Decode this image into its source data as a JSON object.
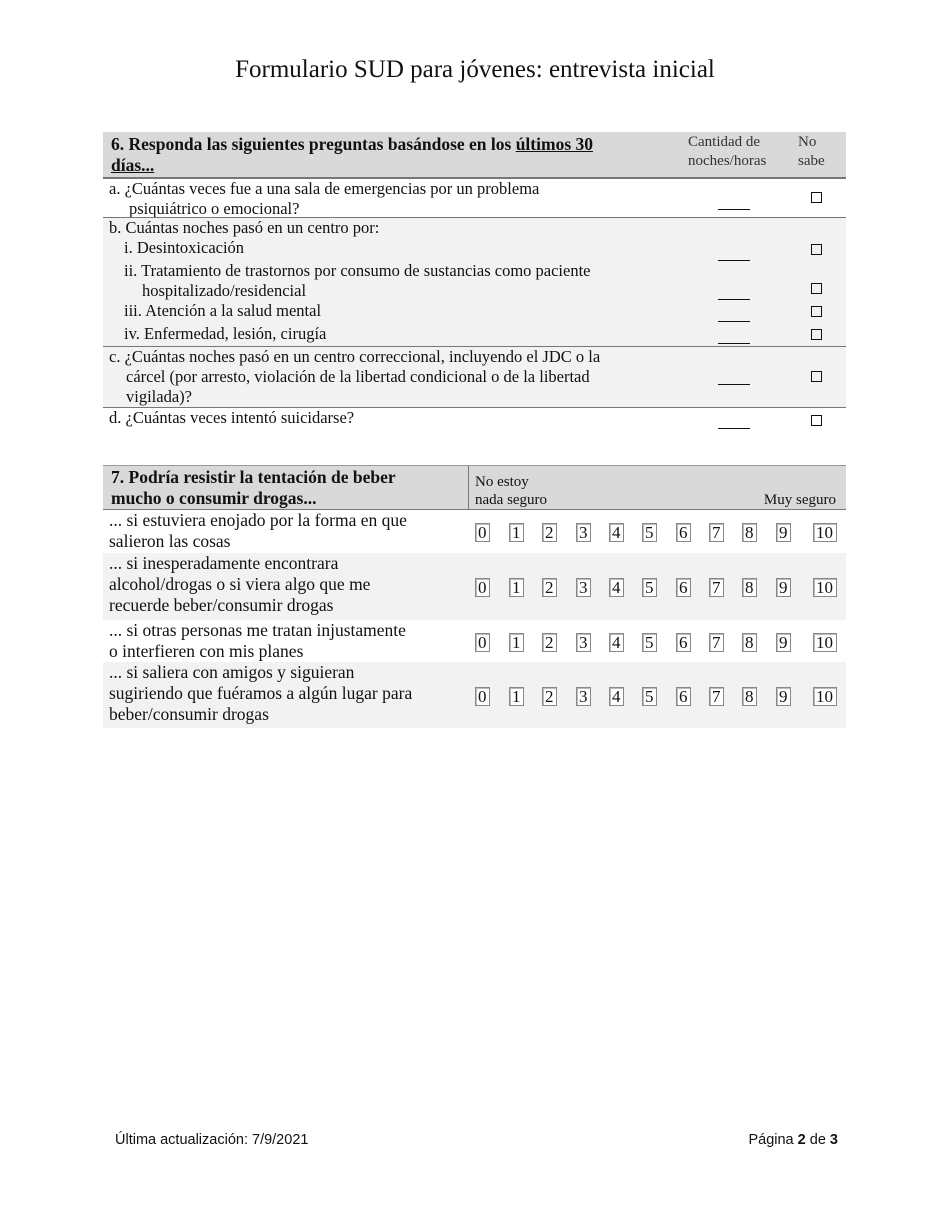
{
  "title": "Formulario SUD para jóvenes: entrevista inicial",
  "q6": {
    "heading_pre": "6. Responda las siguientes preguntas basándose en los ",
    "heading_u1": "últimos 30",
    "heading_u2": "días...",
    "col_amount_1": "Cantidad de",
    "col_amount_2": "noches/horas",
    "col_unknown_1": "No",
    "col_unknown_2": "sabe",
    "a": [
      "a. ¿Cuántas veces fue a una sala de emergencias por un problema",
      "psiquiátrico o emocional?"
    ],
    "b": [
      "b. Cuántas noches pasó en un centro por:",
      "i. Desintoxicación",
      "ii. Tratamiento de trastornos por consumo de sustancias como paciente",
      "hospitalizado/residencial",
      "iii. Atención a la salud mental",
      "iv. Enfermedad, lesión, cirugía"
    ],
    "c": [
      "c. ¿Cuántas noches pasó en un centro correccional, incluyendo el JDC o la",
      "cárcel (por arresto, violación de la libertad condicional o de la libertad",
      "vigilada)?"
    ],
    "d": [
      "d. ¿Cuántas veces intentó suicidarse?"
    ]
  },
  "q7": {
    "heading_1": "7. Podría resistir la tentación de beber",
    "heading_2": "mucho o consumir drogas...",
    "low_1": "No estoy",
    "low_2": "nada seguro",
    "high": "Muy seguro",
    "scale": [
      "0",
      "1",
      "2",
      "3",
      "4",
      "5",
      "6",
      "7",
      "8",
      "9",
      "10"
    ],
    "items": [
      [
        "... si estuviera enojado por la forma en que",
        "salieron las cosas"
      ],
      [
        "... si inesperadamente encontrara",
        "alcohol/drogas o si viera algo que me",
        "recuerde beber/consumir drogas"
      ],
      [
        "... si otras personas me tratan injustamente",
        "o interfieren con mis planes"
      ],
      [
        "... si saliera con amigos y siguieran",
        "sugiriendo que fuéramos a algún lugar para",
        "beber/consumir drogas"
      ]
    ]
  },
  "footer": {
    "updated": "Última actualización: 7/9/2021",
    "page_pre": "Página ",
    "page_num": "2",
    "page_mid": " de ",
    "page_total": "3"
  }
}
